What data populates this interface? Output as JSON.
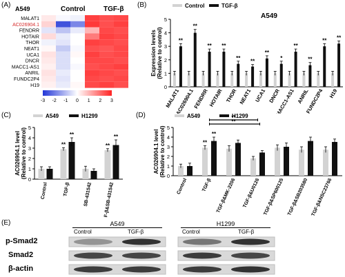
{
  "panels": {
    "A": "(A)",
    "B": "(B)",
    "C": "(C)",
    "D": "(D)",
    "E": "(E)"
  },
  "heatmap": {
    "cell_line": "A549",
    "groups": [
      "Control",
      "TGF-β"
    ],
    "genes": [
      "MALAT1",
      "AC026904.1",
      "FENDRR",
      "HOTAIR",
      "THOR",
      "NEAT1",
      "UCA1",
      "DNCR",
      "MACC1-AS1",
      "ANRIL",
      "FUNDC2P4",
      "H19"
    ],
    "highlight_gene_color": "#d62828",
    "scale_ticks": [
      "-3",
      "-2",
      "-1",
      "0",
      "1",
      "2",
      "3"
    ],
    "values": [
      [
        0.3,
        -0.1,
        -0.2,
        2.6,
        2.4,
        2.5
      ],
      [
        0.6,
        -2.6,
        -1.8,
        2.7,
        2.4,
        2.6
      ],
      [
        -0.4,
        -0.9,
        -0.3,
        1.0,
        2.5,
        2.4
      ],
      [
        0.5,
        -0.3,
        0.0,
        1.8,
        2.6,
        2.5
      ],
      [
        -0.2,
        -0.4,
        0.0,
        2.6,
        2.5,
        2.4
      ],
      [
        0.1,
        -0.8,
        -0.1,
        2.4,
        2.3,
        2.5
      ],
      [
        0.4,
        -0.5,
        0.1,
        2.6,
        2.4,
        2.5
      ],
      [
        0.3,
        -0.5,
        0.0,
        2.5,
        2.5,
        2.4
      ],
      [
        0.2,
        -0.5,
        -0.1,
        2.4,
        2.5,
        2.6
      ],
      [
        0.4,
        -0.3,
        0.0,
        2.6,
        2.5,
        2.4
      ],
      [
        0.3,
        -0.4,
        0.0,
        2.5,
        2.4,
        2.5
      ],
      [
        0.2,
        -0.3,
        0.1,
        2.5,
        2.6,
        2.4
      ]
    ]
  },
  "chart_data": [
    {
      "panel": "B",
      "type": "bar",
      "title": "A549",
      "ylabel": "Expression levels\n(Relative to control)",
      "ylim": [
        0,
        5
      ],
      "yticks": [
        "0",
        "1",
        "2",
        "3",
        "4",
        "5"
      ],
      "legend": [
        "Control",
        "TGF-β"
      ],
      "colors": [
        "#d3d3d3",
        "#111111"
      ],
      "categories": [
        "MALAT1",
        "AC026904.1",
        "FENDRR",
        "HOTAIR",
        "THOR",
        "NEAT1",
        "UCA1",
        "DNCR",
        "MACC1-AS1",
        "ANRIL",
        "FUNDC2P4",
        "H19"
      ],
      "series": [
        {
          "name": "Control",
          "values": [
            1,
            1,
            1,
            1,
            1,
            1,
            1,
            1,
            1,
            1,
            1,
            1
          ]
        },
        {
          "name": "TGF-β",
          "values": [
            3.0,
            4.0,
            2.6,
            2.6,
            1.7,
            1.5,
            2.1,
            1.7,
            2.6,
            1.6,
            3.0,
            3.2
          ]
        }
      ],
      "errors": [
        [
          0.15,
          0.15,
          0.15,
          0.15,
          0.15,
          0.15,
          0.15,
          0.15,
          0.15,
          0.15,
          0.15,
          0.15
        ],
        [
          0.2,
          0.25,
          0.2,
          0.2,
          0.2,
          0.15,
          0.2,
          0.2,
          0.2,
          0.2,
          0.2,
          0.2
        ]
      ],
      "sig": [
        "**",
        "**",
        "**",
        "**",
        "**",
        "**",
        "**",
        "*",
        "**",
        "**",
        "**",
        "**"
      ]
    },
    {
      "panel": "C",
      "type": "bar",
      "ylabel": "AC026904.1 level\n(Relative to control)",
      "ylim": [
        0,
        5
      ],
      "yticks": [
        "0",
        "1",
        "2",
        "3",
        "4",
        "5"
      ],
      "legend": [
        "A549",
        "H1299"
      ],
      "colors": [
        "#d3d3d3",
        "#111111"
      ],
      "categories": [
        "Control",
        "TGF-β",
        "SB-431542",
        "TGF-β&SB-431542"
      ],
      "series": [
        {
          "name": "A549",
          "values": [
            1.0,
            2.9,
            1.0,
            2.8
          ]
        },
        {
          "name": "H1299",
          "values": [
            1.0,
            3.6,
            0.8,
            3.3
          ]
        }
      ],
      "errors": [
        [
          0.2,
          0.15,
          0.25,
          0.15
        ],
        [
          0.2,
          0.4,
          0.2,
          0.5
        ]
      ],
      "sig": [
        [
          "",
          ""
        ],
        [
          "**",
          "**"
        ],
        [
          "",
          ""
        ],
        [
          "**",
          "**"
        ]
      ]
    },
    {
      "panel": "D",
      "type": "bar",
      "ylabel": "AC026904.1 level\n(Relative to control)",
      "ylim": [
        0,
        5
      ],
      "yticks": [
        "0",
        "1",
        "2",
        "3",
        "4",
        "5"
      ],
      "legend": [
        "A549",
        "H1299"
      ],
      "colors": [
        "#d3d3d3",
        "#111111"
      ],
      "categories": [
        "Control",
        "TGF-β",
        "TGF-β&MK-2206",
        "TGF-β&U0126",
        "TGF-β&SP600125",
        "TGF-β&SB203580",
        "TGF-β&NSC23766"
      ],
      "series": [
        {
          "name": "A549",
          "values": [
            1.0,
            2.9,
            2.8,
            1.8,
            2.9,
            2.7,
            2.7
          ]
        },
        {
          "name": "H1299",
          "values": [
            1.0,
            3.6,
            3.4,
            2.4,
            3.0,
            3.6,
            3.5
          ]
        }
      ],
      "errors": [
        [
          0.2,
          0.2,
          0.3,
          0.2,
          0.3,
          0.3,
          0.3
        ],
        [
          0.3,
          0.4,
          0.3,
          0.2,
          0.4,
          0.4,
          0.3
        ]
      ],
      "sig": [
        [
          "",
          ""
        ],
        [
          "**",
          "**"
        ],
        [
          "",
          ""
        ],
        [
          "",
          ""
        ],
        [
          "",
          ""
        ],
        [
          "",
          ""
        ],
        [
          "",
          ""
        ]
      ],
      "brackets": [
        "**",
        "**"
      ]
    }
  ],
  "blot": {
    "cell_lines": [
      "A549",
      "H1299"
    ],
    "conditions": [
      "Control",
      "TGF-β"
    ],
    "rows": [
      "p-Smad2",
      "Smad2",
      "β-actin"
    ]
  }
}
